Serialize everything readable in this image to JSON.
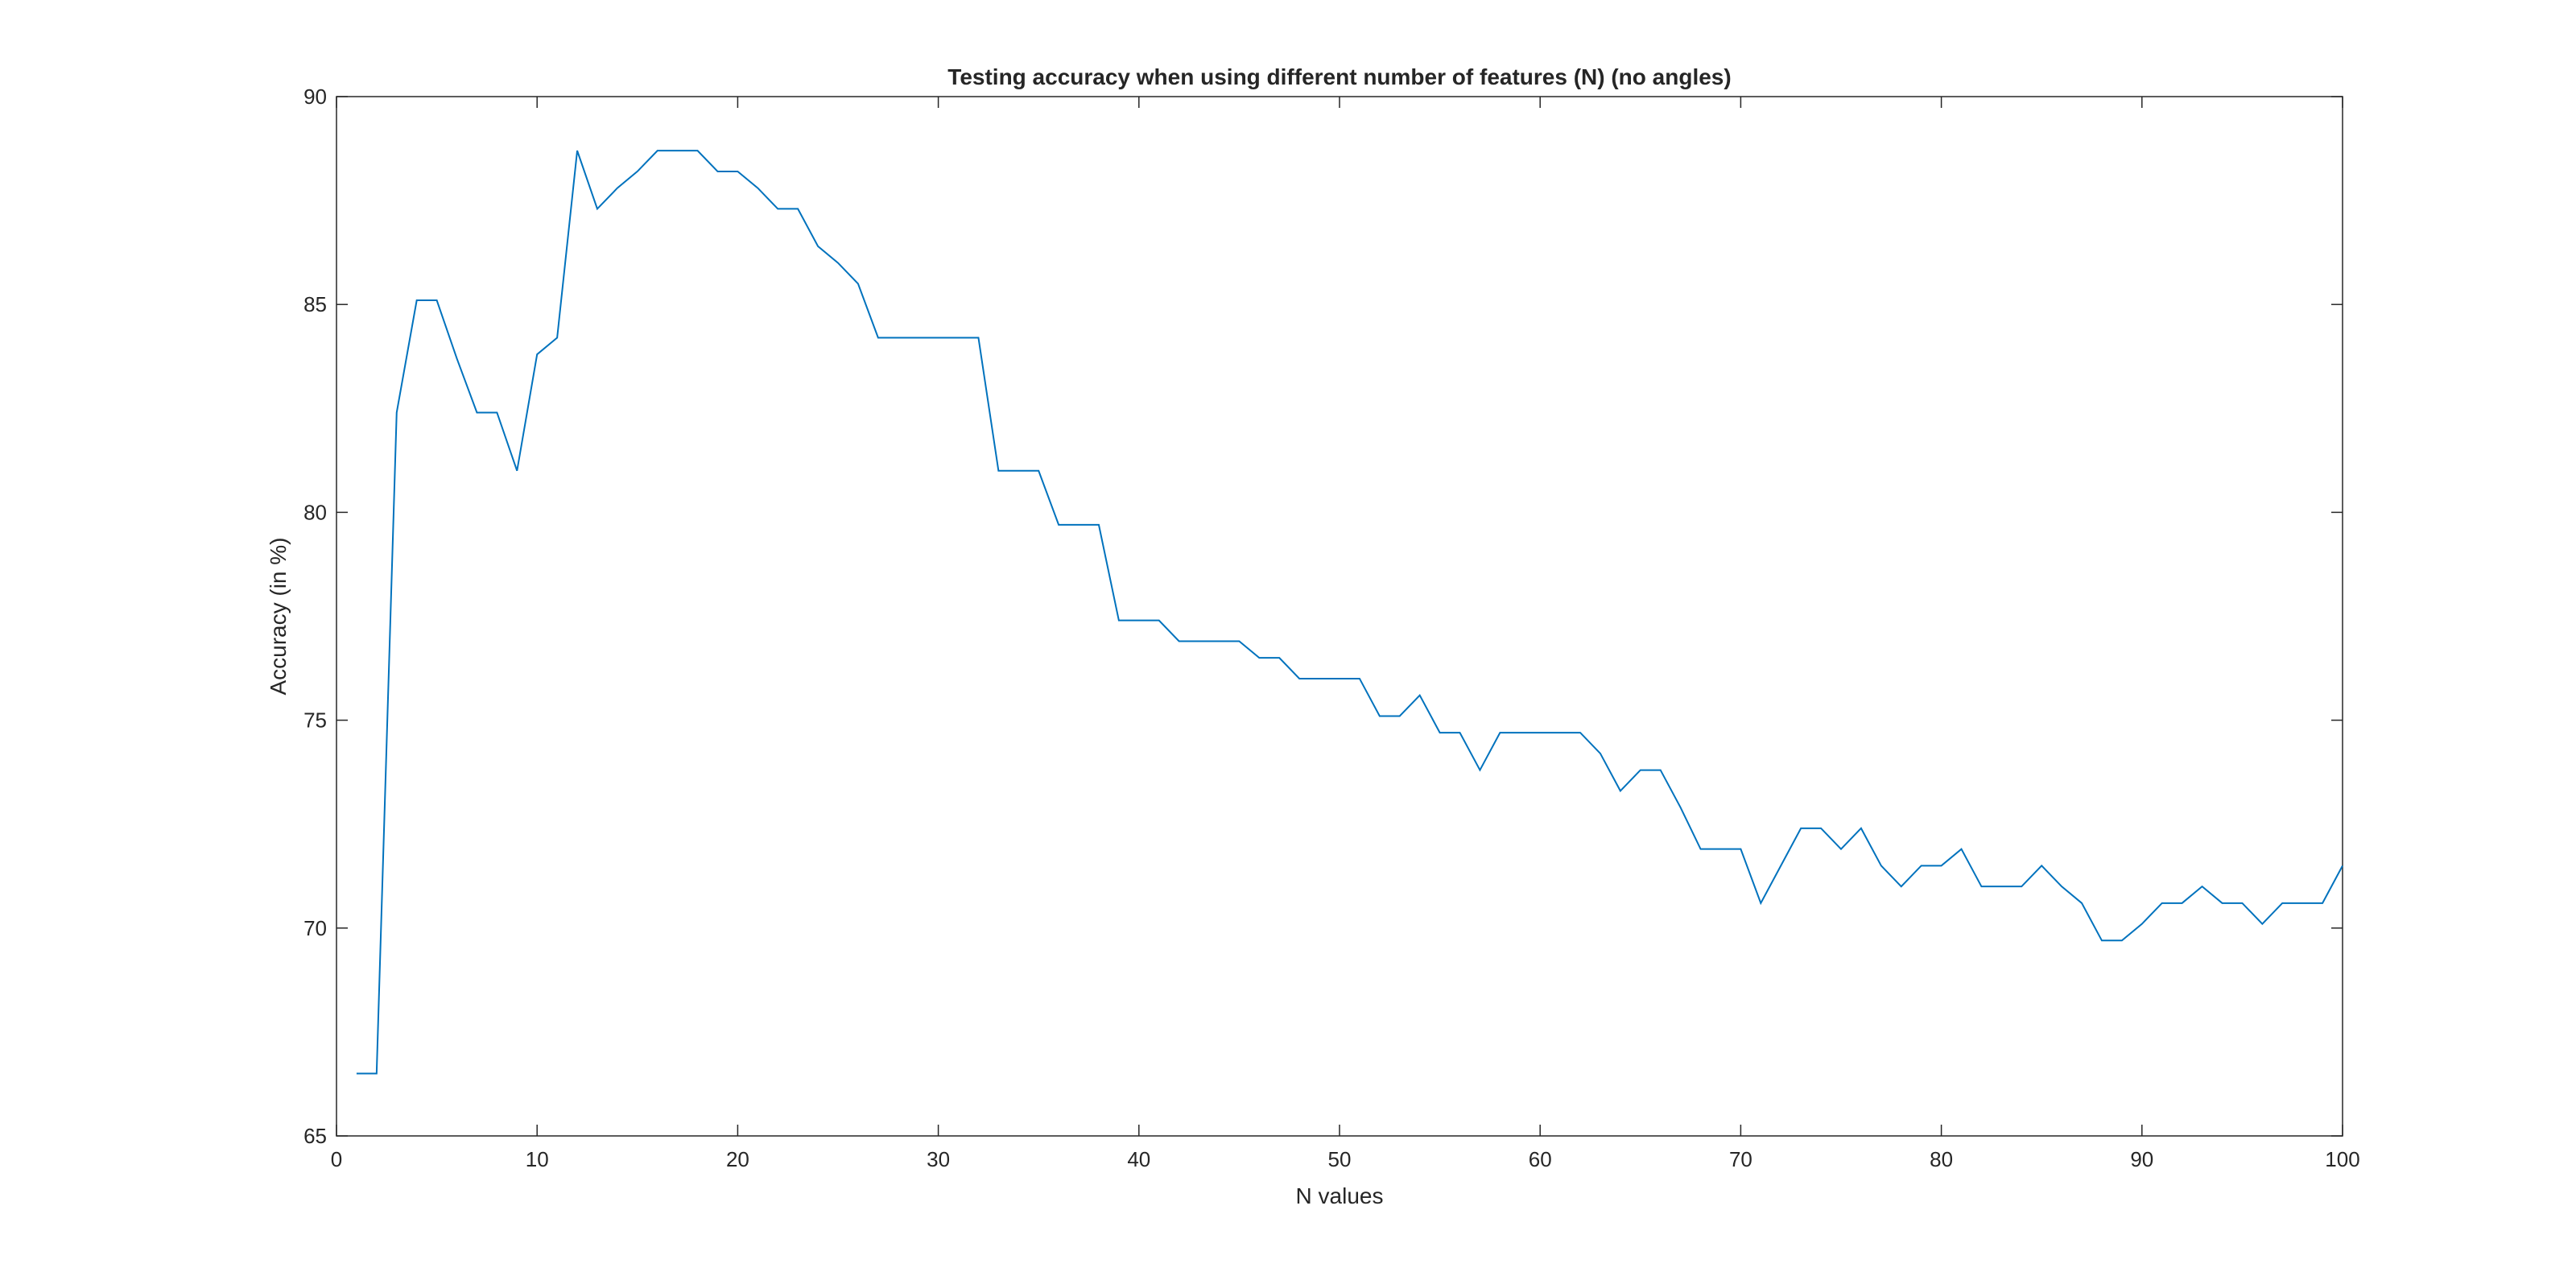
{
  "chart_data": {
    "type": "line",
    "title": "Testing accuracy when using different number of features (N) (no angles)",
    "xlabel": "N values",
    "ylabel": "Accuracy (in %)",
    "xlim": [
      0,
      100
    ],
    "ylim": [
      65,
      90
    ],
    "xticks": [
      "0",
      "10",
      "20",
      "30",
      "40",
      "50",
      "60",
      "70",
      "80",
      "90",
      "100"
    ],
    "yticks": [
      "65",
      "70",
      "75",
      "80",
      "85",
      "90"
    ],
    "grid": false,
    "series": [
      {
        "color": "#0072BD",
        "x": [
          1,
          2,
          3,
          4,
          5,
          6,
          7,
          8,
          9,
          10,
          11,
          12,
          13,
          14,
          15,
          16,
          17,
          18,
          19,
          20,
          21,
          22,
          23,
          24,
          25,
          26,
          27,
          28,
          29,
          30,
          31,
          32,
          33,
          34,
          35,
          36,
          37,
          38,
          39,
          40,
          41,
          42,
          43,
          44,
          45,
          46,
          47,
          48,
          49,
          50,
          51,
          52,
          53,
          54,
          55,
          56,
          57,
          58,
          59,
          60,
          61,
          62,
          63,
          64,
          65,
          66,
          67,
          68,
          69,
          70,
          71,
          72,
          73,
          74,
          75,
          76,
          77,
          78,
          79,
          80,
          81,
          82,
          83,
          84,
          85,
          86,
          87,
          88,
          89,
          90,
          91,
          92,
          93,
          94,
          95,
          96,
          97,
          98,
          99,
          100
        ],
        "y": [
          66.5,
          66.5,
          82.4,
          85.1,
          85.1,
          83.7,
          82.4,
          82.4,
          81.0,
          83.8,
          84.2,
          88.7,
          87.3,
          87.8,
          88.2,
          88.7,
          88.7,
          88.7,
          88.2,
          88.2,
          87.8,
          87.3,
          87.3,
          86.4,
          86.0,
          85.5,
          84.2,
          84.2,
          84.2,
          84.2,
          84.2,
          84.2,
          81.0,
          81.0,
          81.0,
          79.7,
          79.7,
          79.7,
          77.4,
          77.4,
          77.4,
          76.9,
          76.9,
          76.9,
          76.9,
          76.5,
          76.5,
          76.0,
          76.0,
          76.0,
          76.0,
          75.1,
          75.1,
          75.6,
          74.7,
          74.7,
          73.8,
          74.7,
          74.7,
          74.7,
          74.7,
          74.7,
          74.2,
          73.3,
          73.8,
          73.8,
          72.9,
          71.9,
          71.9,
          71.9,
          70.6,
          71.5,
          72.4,
          72.4,
          71.9,
          72.4,
          71.5,
          71.0,
          71.5,
          71.5,
          71.9,
          71.0,
          71.0,
          71.0,
          71.5,
          71.0,
          70.6,
          69.7,
          69.7,
          70.1,
          70.6,
          70.6,
          71.0,
          70.6,
          70.6,
          70.1,
          70.6,
          70.6,
          70.6,
          71.5
        ]
      }
    ]
  }
}
